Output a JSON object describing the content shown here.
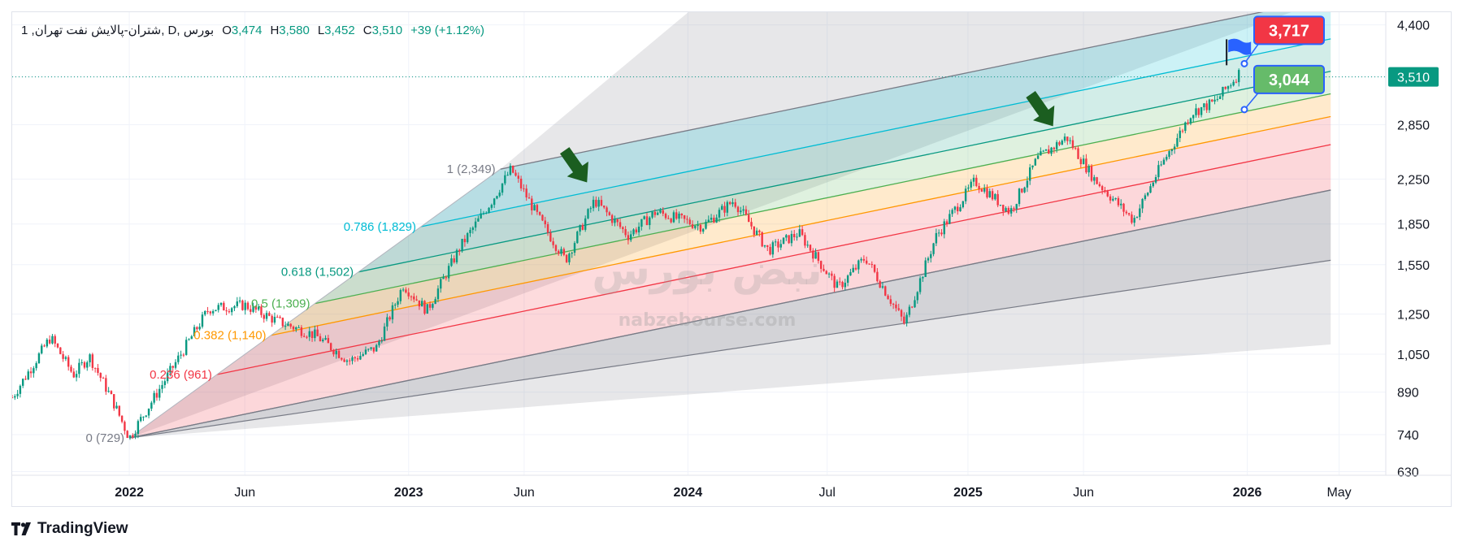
{
  "legend": {
    "symbol": "1 ,شتران-پالایش نفت تهران, D, بورس",
    "open_label": "O",
    "open": "3,474",
    "high_label": "H",
    "high": "3,580",
    "low_label": "L",
    "low": "3,452",
    "close_label": "C",
    "close": "3,510",
    "change": "+39 (+1.12%)"
  },
  "branding": {
    "name": "TradingView"
  },
  "watermark": {
    "brand": "نبض بورس",
    "url": "nabzebourse.com"
  },
  "chart_data": {
    "type": "candlestick",
    "price_axis": {
      "scale": "log",
      "ticks": [
        4400,
        3510,
        2850,
        2250,
        1850,
        1550,
        1250,
        1050,
        890,
        740,
        630
      ],
      "tick_labels": [
        "4,400",
        "3,510",
        "2,850",
        "2,250",
        "1,850",
        "1,550",
        "1,250",
        "1,050",
        "890",
        "740",
        "630"
      ],
      "range": [
        620,
        4650
      ]
    },
    "time_axis": {
      "labels": [
        "2022",
        "Jun",
        "2023",
        "Jun",
        "2024",
        "Jul",
        "2025",
        "Jun",
        "2026",
        "May"
      ],
      "label_dates": [
        "2022-01-01",
        "2022-06-01",
        "2023-01-01",
        "2023-06-01",
        "2024-01-01",
        "2024-07-01",
        "2025-01-01",
        "2025-06-01",
        "2026-01-01",
        "2026-05-01"
      ],
      "bold_labels": [
        "2022",
        "2023",
        "2024",
        "2025",
        "2026"
      ],
      "range": [
        "2021-08-01",
        "2026-07-01"
      ]
    },
    "last_price": {
      "value": 3510,
      "label": "3,510",
      "color": "#089981"
    },
    "fib_channel": {
      "anchor_start": {
        "date": "2022-01-01",
        "price": 729
      },
      "anchor_top": {
        "date": "2023-05-01",
        "price": 2349
      },
      "end_date": "2026-04-20",
      "levels": [
        {
          "level": "1",
          "price": 2349,
          "label": "1 (2,349)",
          "color": "#787b86"
        },
        {
          "level": "0.786",
          "price": 1829,
          "label": "0.786 (1,829)",
          "color": "#00bcd4"
        },
        {
          "level": "0.618",
          "price": 1502,
          "label": "0.618 (1,502)",
          "color": "#089981"
        },
        {
          "level": "0.5",
          "price": 1309,
          "label": "0.5 (1,309)",
          "color": "#4caf50"
        },
        {
          "level": "0.382",
          "price": 1140,
          "label": "0.382 (1,140)",
          "color": "#ff9800"
        },
        {
          "level": "0.236",
          "price": 961,
          "label": "0.236 (961)",
          "color": "#f23645"
        },
        {
          "level": "0",
          "price": 729,
          "label": "0 (729)",
          "color": "#787b86"
        }
      ]
    },
    "price_callouts": [
      {
        "label": "3,717",
        "value": 3717,
        "date": "2025-12-25",
        "color": "#f23645"
      },
      {
        "label": "3,044",
        "value": 3044,
        "date": "2025-12-25",
        "color": "#66bb6a"
      }
    ],
    "annotations": [
      {
        "type": "arrow-down",
        "date": "2023-08-10",
        "price": 2350,
        "color": "#1b5e20"
      },
      {
        "type": "arrow-down",
        "date": "2025-04-10",
        "price": 3000,
        "color": "#1b5e20"
      },
      {
        "type": "flag",
        "date": "2025-12-05",
        "price": 3717,
        "color": "#2962ff"
      }
    ],
    "series_path": [
      [
        "2021-08-01",
        870
      ],
      [
        "2021-09-20",
        1130
      ],
      [
        "2021-10-20",
        960
      ],
      [
        "2021-11-10",
        1040
      ],
      [
        "2021-12-10",
        860
      ],
      [
        "2022-01-01",
        729
      ],
      [
        "2022-02-15",
        930
      ],
      [
        "2022-04-15",
        1280
      ],
      [
        "2022-06-01",
        1300
      ],
      [
        "2022-07-15",
        1210
      ],
      [
        "2022-09-01",
        1140
      ],
      [
        "2022-10-15",
        1020
      ],
      [
        "2022-11-20",
        1080
      ],
      [
        "2022-12-25",
        1420
      ],
      [
        "2023-01-25",
        1270
      ],
      [
        "2023-03-10",
        1680
      ],
      [
        "2023-04-20",
        2050
      ],
      [
        "2023-05-15",
        2349
      ],
      [
        "2023-06-20",
        1900
      ],
      [
        "2023-07-25",
        1580
      ],
      [
        "2023-09-01",
        2050
      ],
      [
        "2023-10-15",
        1760
      ],
      [
        "2023-11-20",
        1950
      ],
      [
        "2024-01-20",
        1830
      ],
      [
        "2024-03-01",
        2050
      ],
      [
        "2024-04-15",
        1650
      ],
      [
        "2024-05-25",
        1780
      ],
      [
        "2024-07-15",
        1400
      ],
      [
        "2024-08-20",
        1600
      ],
      [
        "2024-10-10",
        1200
      ],
      [
        "2024-11-20",
        1750
      ],
      [
        "2025-01-10",
        2230
      ],
      [
        "2025-02-25",
        1950
      ],
      [
        "2025-04-01",
        2450
      ],
      [
        "2025-05-10",
        2700
      ],
      [
        "2025-06-15",
        2250
      ],
      [
        "2025-08-05",
        1880
      ],
      [
        "2025-09-10",
        2380
      ],
      [
        "2025-10-20",
        3000
      ],
      [
        "2025-11-20",
        3150
      ],
      [
        "2025-12-22",
        3580
      ]
    ]
  }
}
